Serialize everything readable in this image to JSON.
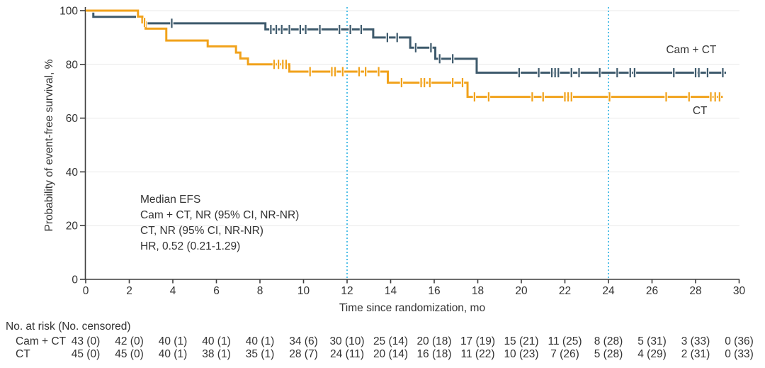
{
  "figure": {
    "annotation_lines": [
      "Median EFS",
      "Cam + CT, NR (95% CI, NR-NR)",
      "CT, NR (95% CI, NR-NR)",
      "HR, 0.52 (0.21-1.29)"
    ]
  },
  "chart_data": {
    "type": "line",
    "subtype": "kaplan-meier-step",
    "title": "",
    "xlabel": "Time since randomization, mo",
    "ylabel": "Probability of event-free survival, %",
    "xlim": [
      0,
      30
    ],
    "ylim": [
      0,
      100
    ],
    "x_ticks": [
      0,
      2,
      4,
      6,
      8,
      10,
      12,
      14,
      16,
      18,
      20,
      22,
      24,
      26,
      28,
      30
    ],
    "y_ticks": [
      0,
      20,
      40,
      60,
      80,
      100
    ],
    "grid": "horizontal",
    "grid_color": "#E9E9E9",
    "axis_color": "#3D3D3D",
    "reference_lines_x": [
      12,
      24
    ],
    "reference_line_color": "#53C0E8",
    "legend_position": "inline-right",
    "series": [
      {
        "name": "Cam + CT",
        "color": "#3E5A6C",
        "steps": [
          [
            0,
            100
          ],
          [
            0.35,
            97.7
          ],
          [
            2.6,
            95.3
          ],
          [
            8.25,
            93.0
          ],
          [
            13.2,
            90.0
          ],
          [
            14.9,
            86.2
          ],
          [
            16.05,
            82.1
          ],
          [
            17.95,
            76.9
          ]
        ],
        "end_x": 29.4,
        "censor_x": [
          3.95,
          8.5,
          8.75,
          9.0,
          9.35,
          9.85,
          10.1,
          10.75,
          11.65,
          12.15,
          12.65,
          13.85,
          14.3,
          15.15,
          15.85,
          16.25,
          16.85,
          19.9,
          20.8,
          21.4,
          21.55,
          21.7,
          22.3,
          22.65,
          23.6,
          24.4,
          25.0,
          25.2,
          27.0,
          28.0,
          28.15,
          28.55,
          29.25
        ],
        "label_pos": [
          27.8,
          85.5
        ]
      },
      {
        "name": "CT",
        "color": "#F1A21B",
        "steps": [
          [
            0,
            100
          ],
          [
            2.4,
            97.8
          ],
          [
            2.6,
            95.6
          ],
          [
            2.75,
            93.3
          ],
          [
            3.7,
            88.9
          ],
          [
            5.6,
            86.7
          ],
          [
            6.9,
            84.4
          ],
          [
            7.1,
            82.2
          ],
          [
            7.45,
            80.0
          ],
          [
            9.35,
            77.3
          ],
          [
            13.87,
            73.2
          ],
          [
            17.53,
            67.9
          ]
        ],
        "end_x": 29.25,
        "censor_x": [
          2.7,
          8.65,
          8.85,
          9.05,
          9.2,
          10.3,
          11.3,
          11.45,
          11.8,
          12.55,
          12.85,
          13.45,
          14.5,
          15.4,
          15.55,
          15.8,
          16.85,
          17.3,
          17.85,
          18.5,
          20.5,
          21.0,
          22.0,
          22.15,
          22.3,
          24.05,
          26.65,
          27.7,
          28.7,
          28.9,
          29.1
        ],
        "label_pos": [
          28.2,
          62.8
        ]
      }
    ]
  },
  "risk_table": {
    "header": "No. at risk (No. censored)",
    "time_points": [
      0,
      2,
      4,
      6,
      8,
      10,
      12,
      14,
      16,
      18,
      20,
      22,
      24,
      26,
      28,
      30
    ],
    "rows": [
      {
        "label": "Cam + CT",
        "values": [
          "43 (0)",
          "42 (0)",
          "40 (1)",
          "40 (1)",
          "40 (1)",
          "34 (6)",
          "30 (10)",
          "25 (14)",
          "20 (18)",
          "17 (19)",
          "15 (21)",
          "11 (25)",
          "8 (28)",
          "5 (31)",
          "3 (33)",
          "0 (36)"
        ]
      },
      {
        "label": "CT",
        "values": [
          "45 (0)",
          "45 (0)",
          "40 (1)",
          "38 (1)",
          "35 (1)",
          "28 (7)",
          "24 (11)",
          "20 (14)",
          "16 (18)",
          "11 (22)",
          "10 (23)",
          "7 (26)",
          "5 (28)",
          "4 (29)",
          "2 (31)",
          "0 (33)"
        ]
      }
    ]
  }
}
